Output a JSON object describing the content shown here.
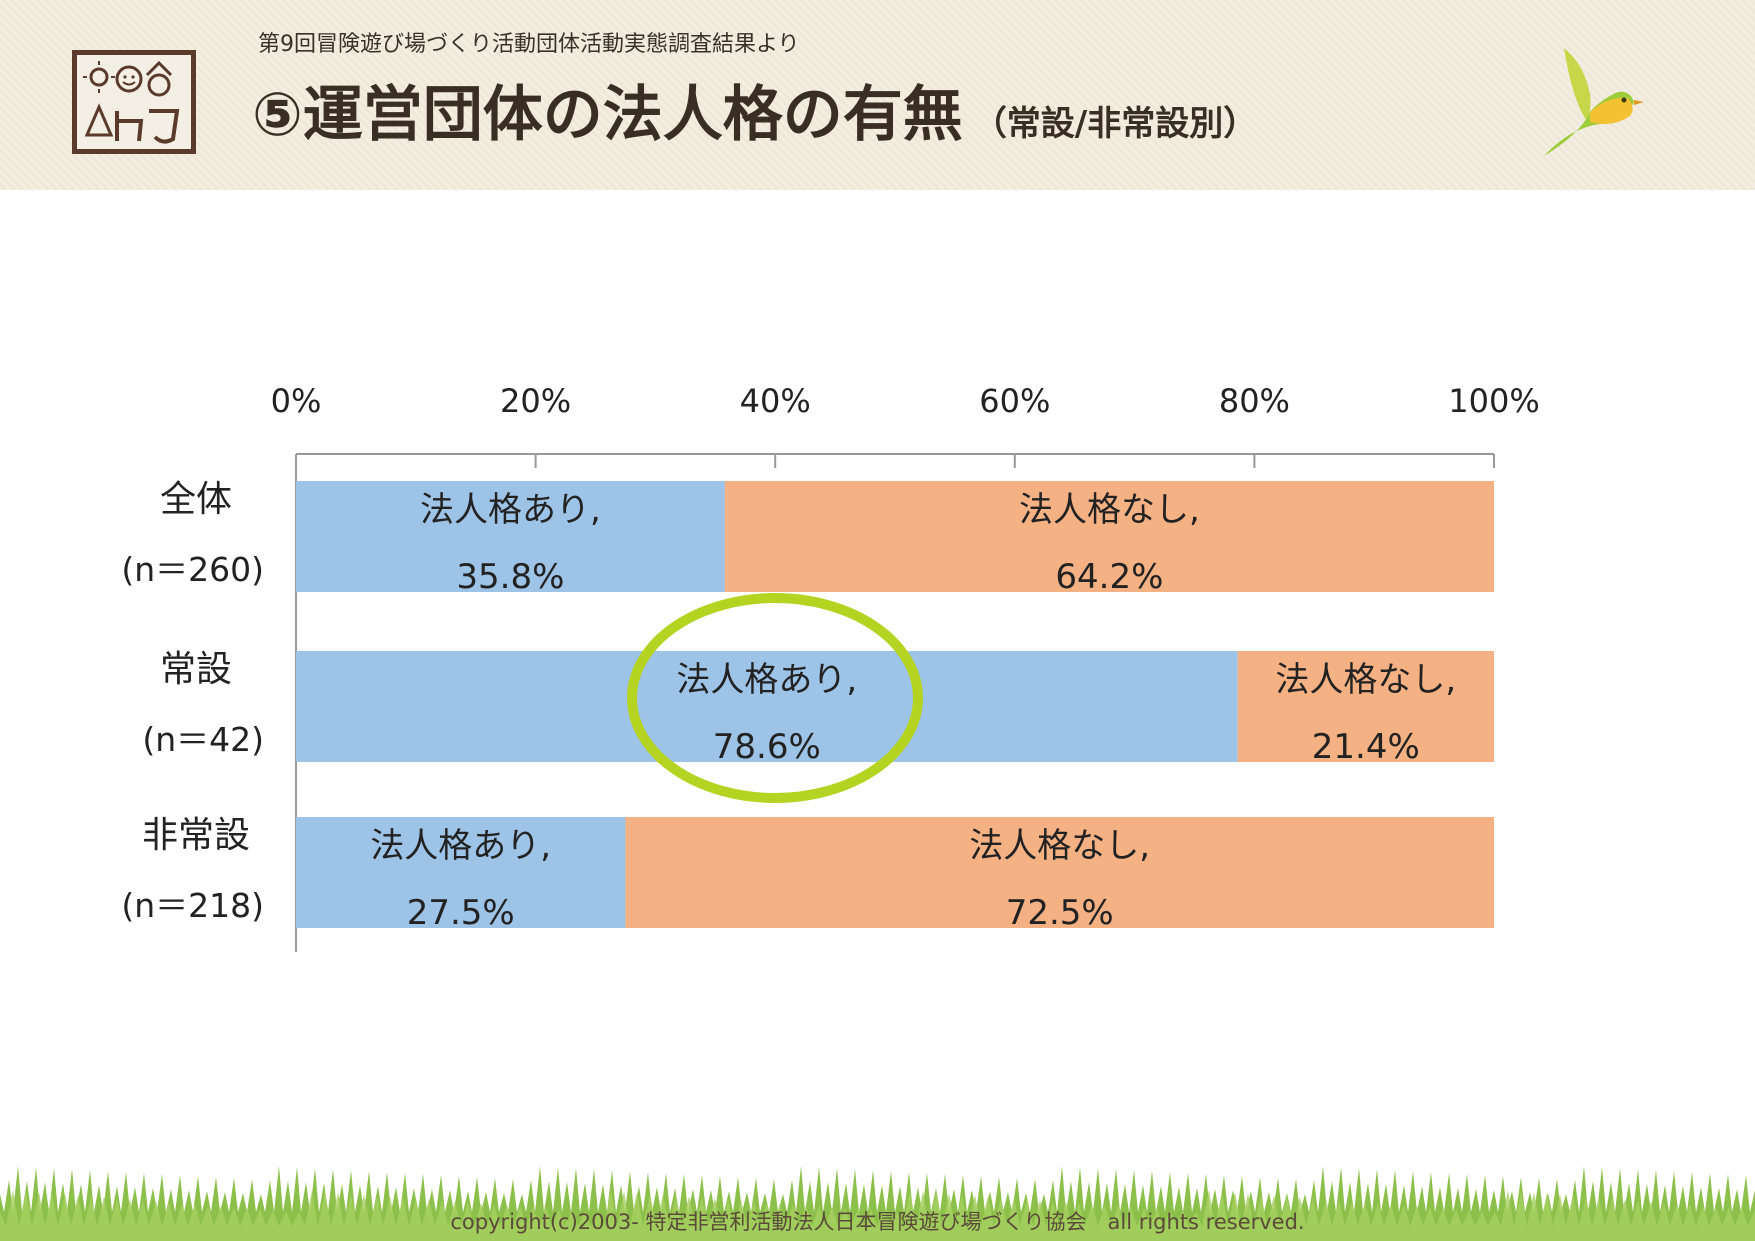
{
  "header": {
    "subtitle": "第9回冒険遊び場づくり活動団体活動実態調査結果より",
    "title": "⑤運営団体の法人格の有無",
    "title_sub": "（常設/非常設別）"
  },
  "footer": {
    "copyright": "copyright(c)2003- 特定非営利活動法人日本冒険遊び場づくり協会　all rights reserved."
  },
  "colors": {
    "with_status": "#9dc3e6",
    "without_status": "#f4b183",
    "highlight": "#b5d321"
  },
  "chart_data": {
    "type": "bar",
    "orientation": "horizontal-stacked-100",
    "categories": [
      {
        "label": "全体",
        "n": "(n＝260)"
      },
      {
        "label": "常設",
        "n": "(n＝42)"
      },
      {
        "label": "非常設",
        "n": "(n＝218)"
      }
    ],
    "series": [
      {
        "name": "法人格あり",
        "values": [
          35.8,
          78.6,
          27.5
        ],
        "labels": [
          "35.8%",
          "78.6%",
          "27.5%"
        ]
      },
      {
        "name": "法人格なし",
        "values": [
          64.2,
          21.4,
          72.5
        ],
        "labels": [
          "64.2%",
          "21.4%",
          "72.5%"
        ]
      }
    ],
    "xlim": [
      0,
      100
    ],
    "ticks": [
      "0%",
      "20%",
      "40%",
      "60%",
      "80%",
      "100%"
    ],
    "tick_values": [
      0,
      20,
      40,
      60,
      80,
      100
    ],
    "highlighted_category": 1,
    "grid": false,
    "legend": "none"
  }
}
